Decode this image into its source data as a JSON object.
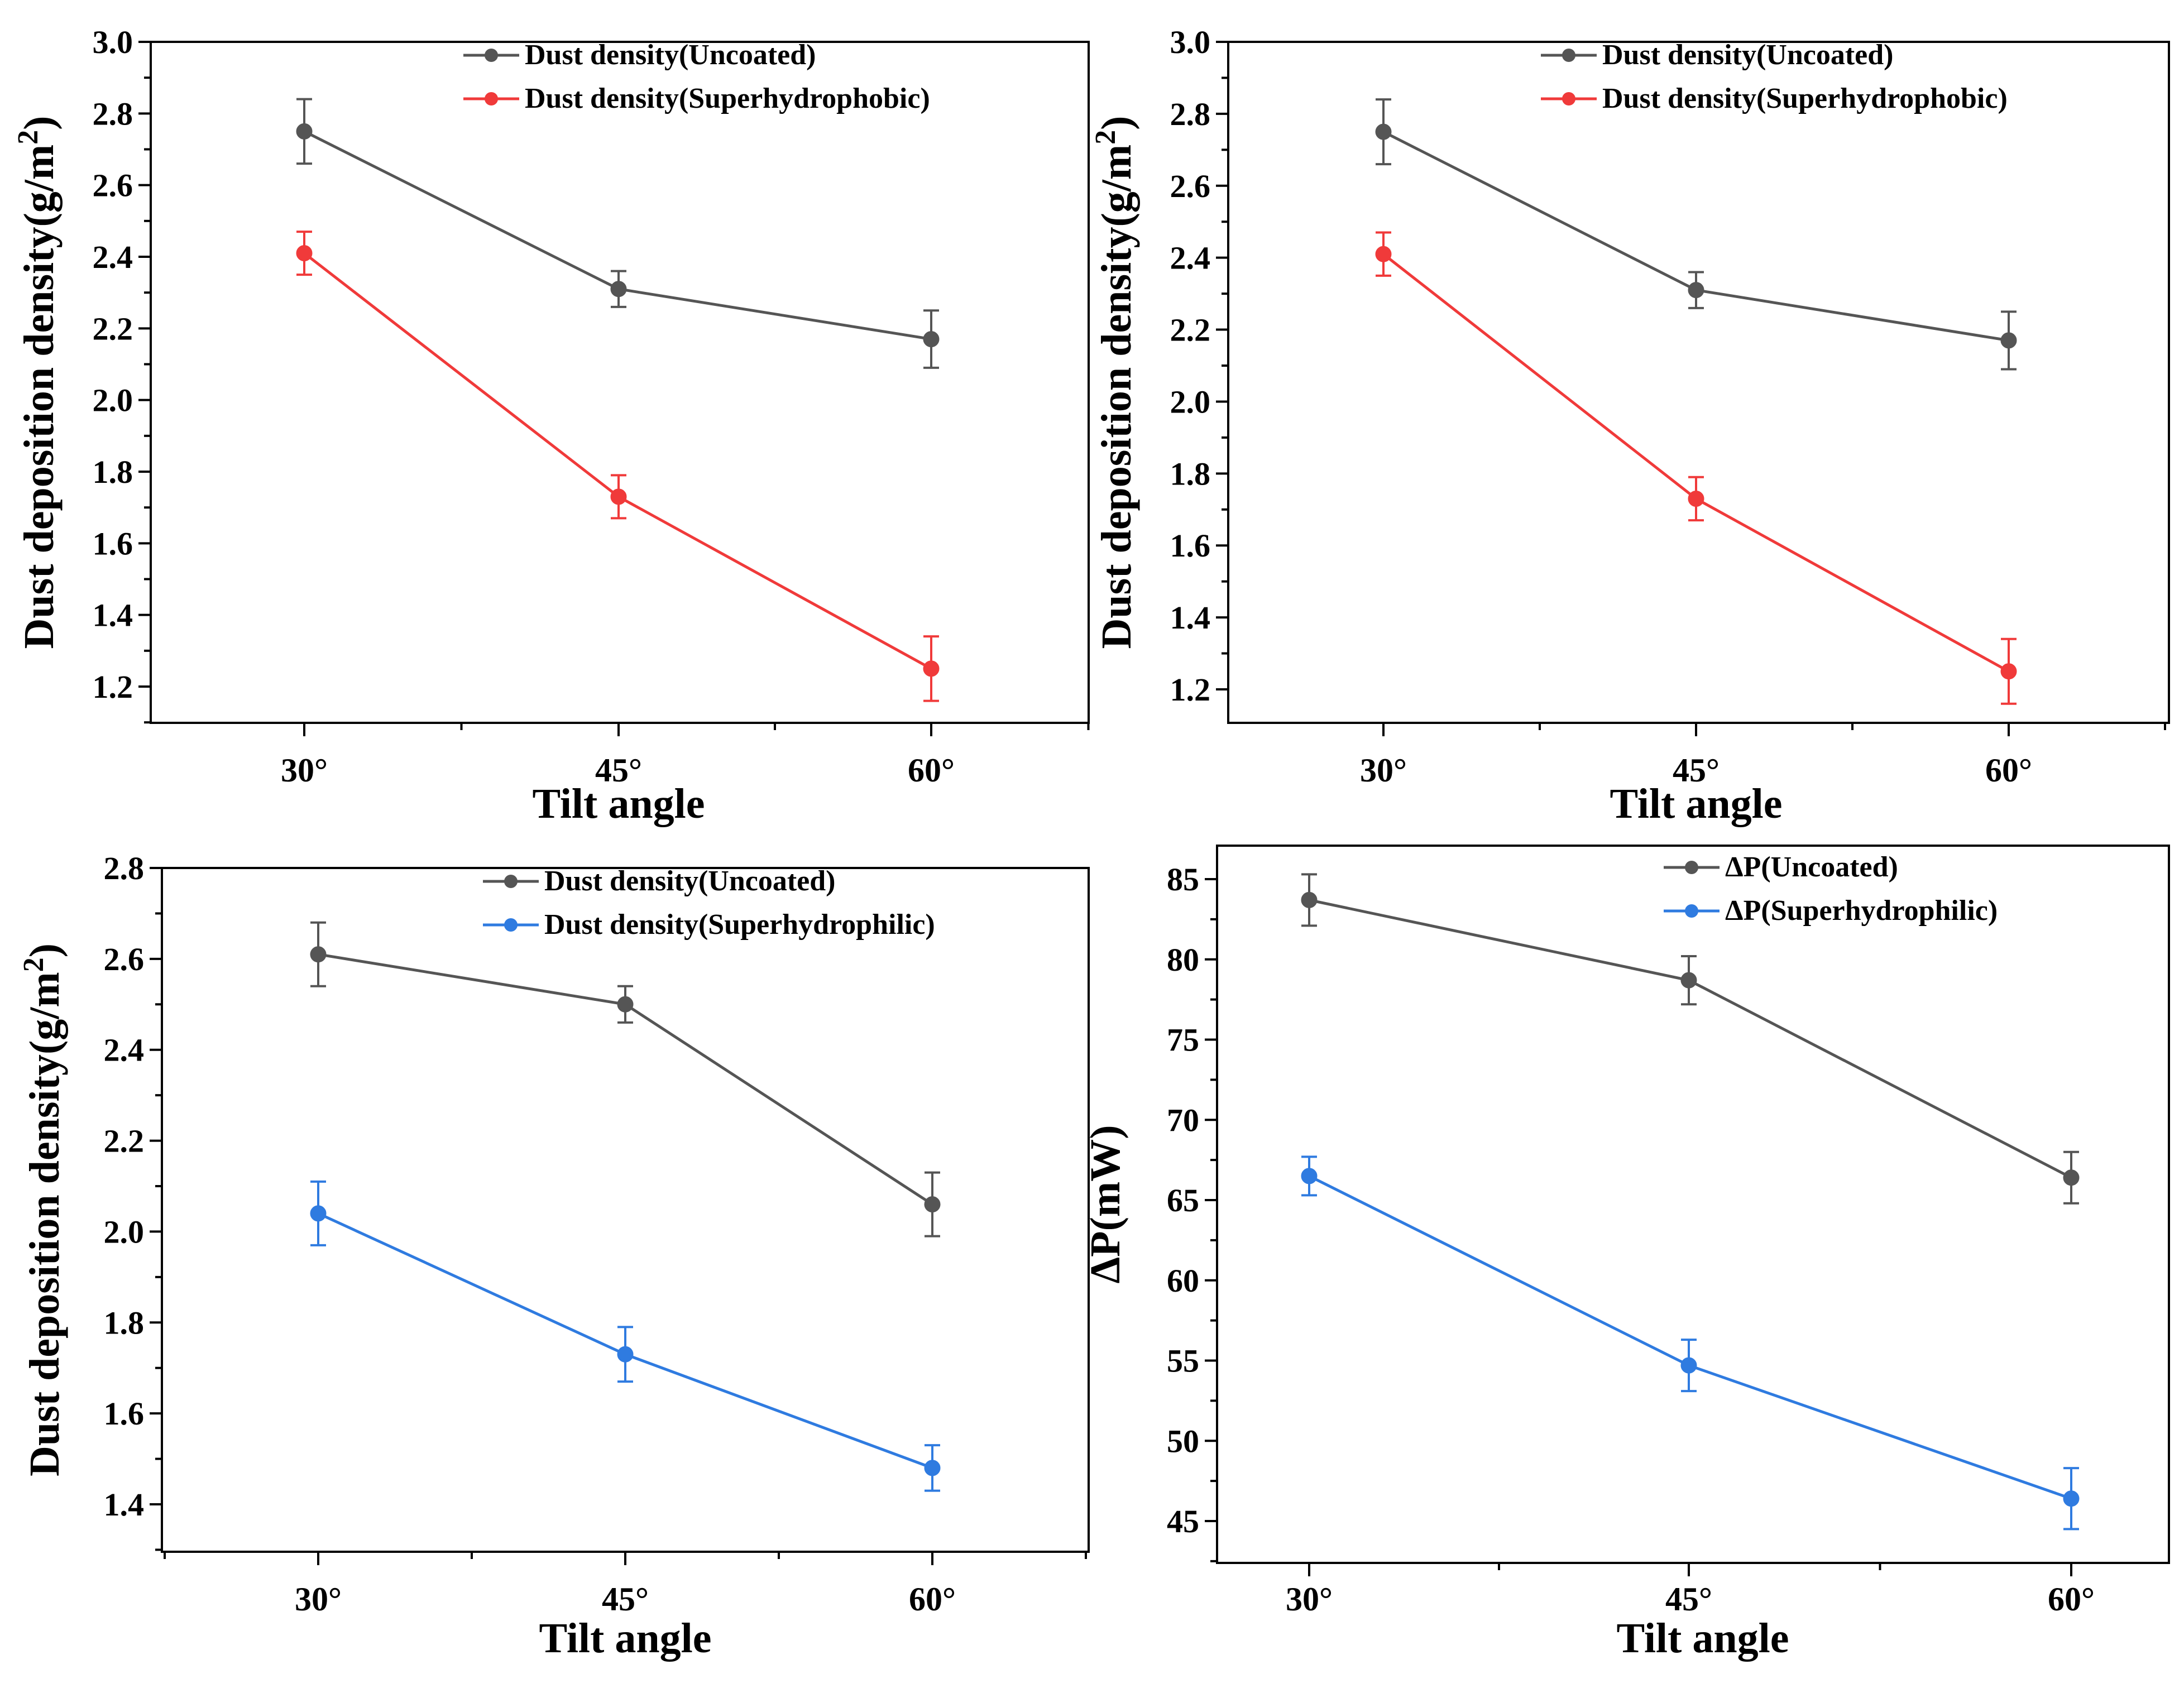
{
  "figure": {
    "panels": [
      {
        "id": "a",
        "colors": {
          "uncoated": "#555555",
          "coated": "#f03a3a"
        },
        "legend": [
          "Dust density(Uncoated)",
          "Dust density(Superhydrophobic)"
        ],
        "ytick_labels": [
          "1.2",
          "1.4",
          "1.6",
          "1.8",
          "2.0",
          "2.2",
          "2.4",
          "2.6",
          "2.8",
          "3.0"
        ],
        "xtick_labels": [
          "30°",
          "45°",
          "60°"
        ]
      },
      {
        "id": "b",
        "colors": {
          "uncoated": "#555555",
          "coated": "#f03a3a"
        },
        "legend": [
          "Dust density(Uncoated)",
          "Dust density(Superhydrophobic)"
        ],
        "ytick_labels": [
          "1.2",
          "1.4",
          "1.6",
          "1.8",
          "2.0",
          "2.2",
          "2.4",
          "2.6",
          "2.8",
          "3.0"
        ],
        "xtick_labels": [
          "30°",
          "45°",
          "60°"
        ]
      },
      {
        "id": "c",
        "colors": {
          "uncoated": "#555555",
          "coated": "#2f7be0"
        },
        "legend": [
          "Dust density(Uncoated)",
          "Dust density(Superhydrophilic)"
        ],
        "ytick_labels": [
          "1.4",
          "1.6",
          "1.8",
          "2.0",
          "2.2",
          "2.4",
          "2.6",
          "2.8"
        ],
        "xtick_labels": [
          "30°",
          "45°",
          "60°"
        ]
      },
      {
        "id": "d",
        "colors": {
          "uncoated": "#555555",
          "coated": "#2f7be0"
        },
        "legend": [
          "ΔP(Uncoated)",
          "ΔP(Superhydrophilic)"
        ],
        "ytick_labels": [
          "45",
          "50",
          "55",
          "60",
          "65",
          "70",
          "75",
          "80",
          "85"
        ],
        "xtick_labels": [
          "30°",
          "45°",
          "60°"
        ]
      }
    ]
  },
  "chart_data": [
    {
      "type": "line",
      "xlabel": "Tilt angle",
      "ylabel": "Dust deposition density(g/m²)",
      "ylabel_main": "Dust deposition density(g/m",
      "ylabel_sup": "2",
      "ylabel_end": ")",
      "categories": [
        "30°",
        "45°",
        "60°"
      ],
      "ylim": [
        1.1,
        3.0
      ],
      "series": [
        {
          "name": "Dust density(Uncoated)",
          "values": [
            2.75,
            2.31,
            2.17
          ],
          "errors": [
            0.09,
            0.05,
            0.08
          ]
        },
        {
          "name": "Dust density(Superhydrophobic)",
          "values": [
            2.41,
            1.73,
            1.25
          ],
          "errors": [
            0.06,
            0.06,
            0.09
          ]
        }
      ]
    },
    {
      "type": "line",
      "xlabel": "Tilt angle",
      "ylabel": "Dust deposition density(g/m²)",
      "ylabel_main": "Dust deposition density(g/m",
      "ylabel_sup": "2",
      "ylabel_end": ")",
      "categories": [
        "30°",
        "45°",
        "60°"
      ],
      "ylim": [
        1.1,
        3.0
      ],
      "series": [
        {
          "name": "Dust density(Uncoated)",
          "values": [
            2.75,
            2.31,
            2.17
          ],
          "errors": [
            0.09,
            0.05,
            0.08
          ]
        },
        {
          "name": "Dust density(Superhydrophobic)",
          "values": [
            2.41,
            1.73,
            1.25
          ],
          "errors": [
            0.06,
            0.06,
            0.09
          ]
        }
      ]
    },
    {
      "type": "line",
      "xlabel": "Tilt angle",
      "ylabel": "Dust deposition density(g/m²)",
      "ylabel_main": "Dust deposition density(g/m",
      "ylabel_sup": "2",
      "ylabel_end": ")",
      "categories": [
        "30°",
        "45°",
        "60°"
      ],
      "ylim": [
        1.3,
        2.8
      ],
      "series": [
        {
          "name": "Dust density(Uncoated)",
          "values": [
            2.61,
            2.5,
            2.06
          ],
          "errors": [
            0.07,
            0.04,
            0.07
          ]
        },
        {
          "name": "Dust density(Superhydrophilic)",
          "values": [
            2.04,
            1.73,
            1.48
          ],
          "errors": [
            0.07,
            0.06,
            0.05
          ]
        }
      ]
    },
    {
      "type": "line",
      "xlabel": "Tilt angle",
      "ylabel": "ΔP(mW)",
      "ylabel_main": "ΔP(mW)",
      "ylabel_sup": "",
      "ylabel_end": "",
      "categories": [
        "30°",
        "45°",
        "60°"
      ],
      "ylim": [
        42.5,
        87.5
      ],
      "series": [
        {
          "name": "ΔP(Uncoated)",
          "values": [
            83.7,
            78.7,
            66.4
          ],
          "errors": [
            1.6,
            1.5,
            1.6
          ]
        },
        {
          "name": "ΔP(Superhydrophilic)",
          "values": [
            66.5,
            54.7,
            46.4
          ],
          "errors": [
            1.2,
            1.6,
            1.9
          ]
        }
      ]
    }
  ]
}
